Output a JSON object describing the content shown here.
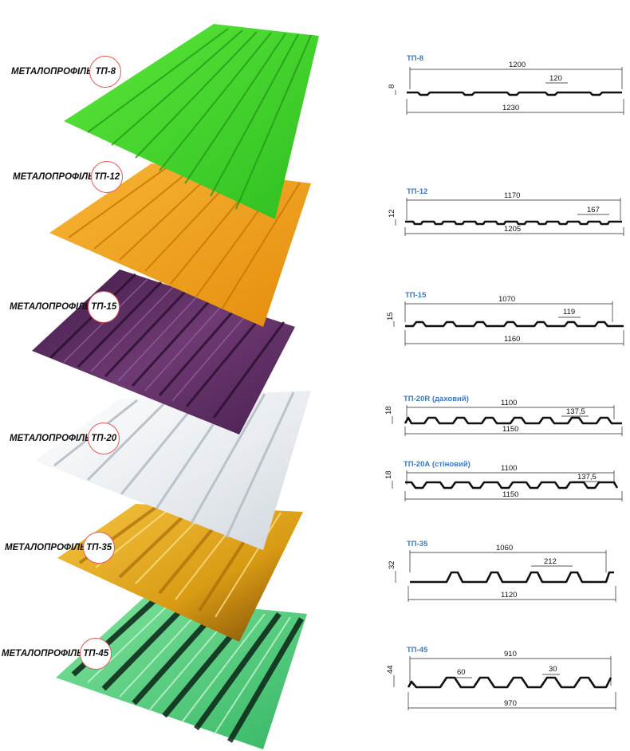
{
  "sheets": [
    {
      "label": "МЕТАЛОПРОФІЛЬ",
      "badge": "ТП-8",
      "color": "#43d42a"
    },
    {
      "label": "МЕТАЛОПРОФІЛЬ",
      "badge": "ТП-12",
      "color": "#f2a21a"
    },
    {
      "label": "МЕТАЛОПРОФІЛЬ",
      "badge": "ТП-15",
      "color": "#5a2a5e"
    },
    {
      "label": "МЕТАЛОПРОФІЛЬ",
      "badge": "ТП-20",
      "color": "#e9edf0"
    },
    {
      "label": "МЕТАЛОПРОФІЛЬ",
      "badge": "ТП-35",
      "color": "#e0a91c"
    },
    {
      "label": "МЕТАЛОПРОФІЛЬ",
      "badge": "ТП-45",
      "color": "#4fcf78"
    }
  ],
  "profiles": [
    {
      "title": "ТП-8",
      "height": "8",
      "top_width": "1200",
      "pitch": "120",
      "bottom_width": "1230"
    },
    {
      "title": "ТП-12",
      "height": "12",
      "top_width": "1170",
      "pitch": "167",
      "bottom_width": "1205"
    },
    {
      "title": "ТП-15",
      "height": "15",
      "top_width": "1070",
      "pitch": "119",
      "bottom_width": "1160"
    },
    {
      "title": "ТП-20R (даховий)",
      "height": "18",
      "top_width": "1100",
      "pitch": "137,5",
      "bottom_width": "1150"
    },
    {
      "title": "ТП-20А (стіновий)",
      "height": "18",
      "top_width": "1100",
      "pitch": "137,5",
      "bottom_width": "1150"
    },
    {
      "title": "ТП-35",
      "height": "32",
      "top_width": "1060",
      "pitch": "212",
      "bottom_width": "1120"
    },
    {
      "title": "ТП-45",
      "height": "44",
      "top_width": "910",
      "pitch": "60",
      "extra": "30",
      "bottom_width": "970"
    }
  ]
}
